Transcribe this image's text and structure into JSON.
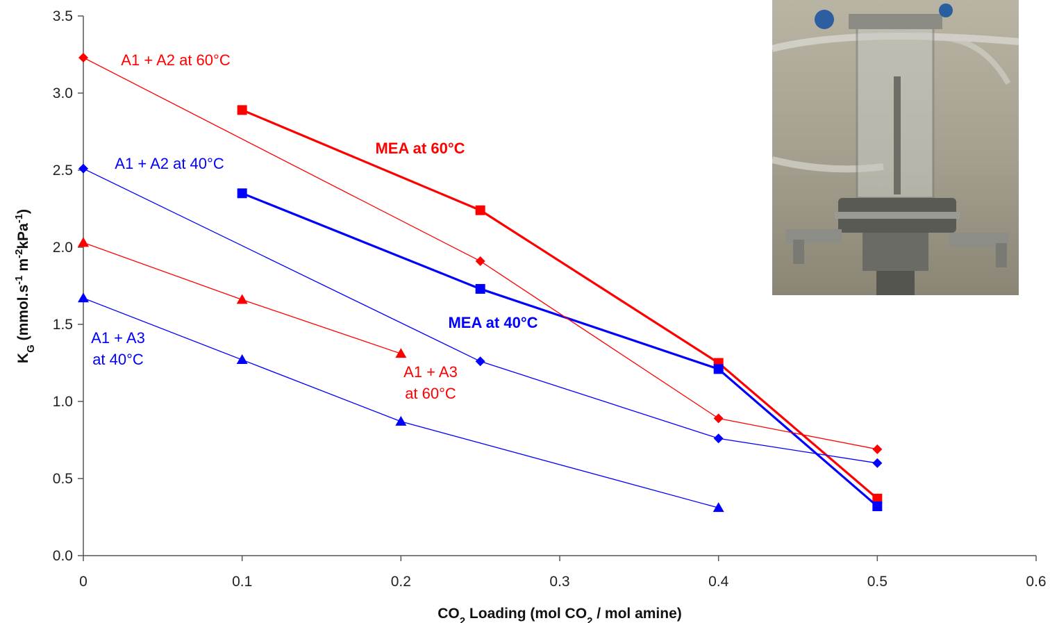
{
  "chart_data": {
    "type": "line",
    "xlabel_parts": [
      "CO",
      "2",
      " Loading (mol CO",
      "2",
      " / mol amine)"
    ],
    "ylabel_parts": [
      "K",
      "G",
      " (mmol.s",
      "-1",
      " m",
      "-2",
      "kPa",
      "-1",
      ")"
    ],
    "xlim": [
      0,
      0.6
    ],
    "ylim": [
      0,
      3.5
    ],
    "x_ticks": [
      "0",
      "0.1",
      "0.2",
      "0.3",
      "0.4",
      "0.5",
      "0.6"
    ],
    "y_ticks": [
      "0.0",
      "0.5",
      "1.0",
      "1.5",
      "2.0",
      "2.5",
      "3.0",
      "3.5"
    ],
    "grid": false,
    "series": [
      {
        "name": "MEA at 60°C",
        "color": "#ff0000",
        "marker": "square",
        "line": "thick",
        "x": [
          0.1,
          0.25,
          0.4,
          0.5
        ],
        "y": [
          2.89,
          2.24,
          1.25,
          0.37
        ]
      },
      {
        "name": "MEA at 40°C",
        "color": "#0000ff",
        "marker": "square",
        "line": "thick",
        "x": [
          0.1,
          0.25,
          0.4,
          0.5
        ],
        "y": [
          2.35,
          1.73,
          1.21,
          0.32
        ]
      },
      {
        "name": "A1 + A2 at 60°C",
        "color": "#ff0000",
        "marker": "diamond",
        "line": "thin",
        "x": [
          0,
          0.25,
          0.4,
          0.5
        ],
        "y": [
          3.23,
          1.91,
          0.89,
          0.69
        ]
      },
      {
        "name": "A1 + A2 at 40°C",
        "color": "#0000ff",
        "marker": "diamond",
        "line": "thin",
        "x": [
          0,
          0.25,
          0.4,
          0.5
        ],
        "y": [
          2.51,
          1.26,
          0.76,
          0.6
        ]
      },
      {
        "name": "A1 + A3 at 60°C",
        "color": "#ff0000",
        "marker": "triangle",
        "line": "thin",
        "x": [
          0,
          0.1,
          0.2
        ],
        "y": [
          2.03,
          1.66,
          1.31
        ]
      },
      {
        "name": "A1 + A3 at 40°C",
        "color": "#0000ff",
        "marker": "triangle",
        "line": "thin",
        "x": [
          0,
          0.1,
          0.2,
          0.4
        ],
        "y": [
          1.67,
          1.27,
          0.87,
          0.31
        ]
      }
    ]
  },
  "labels": [
    {
      "lines": [
        "A1 + A2 at 60°C"
      ],
      "color": "#ff0000",
      "bold": false
    },
    {
      "lines": [
        "MEA at 60°C"
      ],
      "color": "#ff0000",
      "bold": true
    },
    {
      "lines": [
        "A1 + A2 at 40°C"
      ],
      "color": "#0000ff",
      "bold": false
    },
    {
      "lines": [
        "MEA at 40°C"
      ],
      "color": "#0000ff",
      "bold": true
    },
    {
      "lines": [
        "A1 + A3",
        "at 40°C"
      ],
      "color": "#0000ff",
      "bold": false
    },
    {
      "lines": [
        "A1 + A3",
        "at 60°C"
      ],
      "color": "#ff0000",
      "bold": false
    }
  ]
}
